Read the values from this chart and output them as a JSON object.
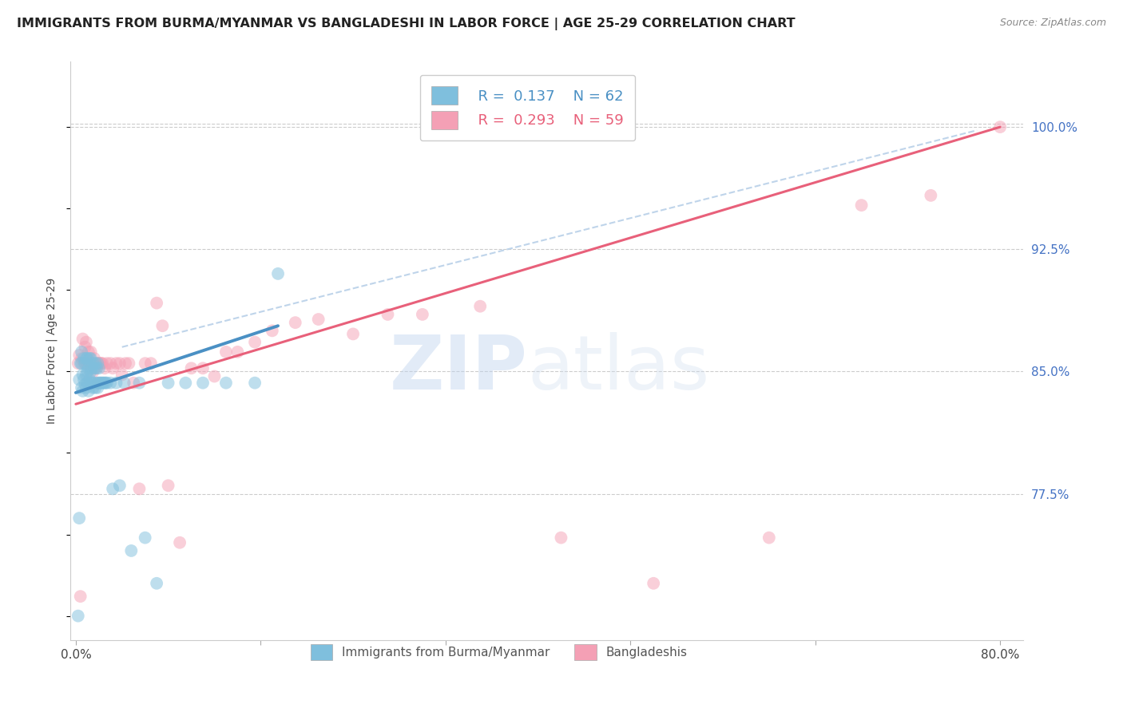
{
  "title": "IMMIGRANTS FROM BURMA/MYANMAR VS BANGLADESHI IN LABOR FORCE | AGE 25-29 CORRELATION CHART",
  "source": "Source: ZipAtlas.com",
  "ylabel": "In Labor Force | Age 25-29",
  "x_tick_positions": [
    0.0,
    0.16,
    0.32,
    0.48,
    0.64,
    0.8
  ],
  "x_tick_labels": [
    "0.0%",
    "",
    "",
    "",
    "",
    "80.0%"
  ],
  "y_ticks": [
    0.775,
    0.85,
    0.925,
    1.0
  ],
  "y_tick_labels_right": [
    "77.5%",
    "85.0%",
    "92.5%",
    "100.0%"
  ],
  "xlim": [
    -0.005,
    0.82
  ],
  "ylim": [
    0.685,
    1.04
  ],
  "blue_color": "#7fbfdd",
  "pink_color": "#f4a0b5",
  "blue_line_color": "#4a90c4",
  "pink_line_color": "#e8607a",
  "dash_color": "#b8d0e8",
  "title_fontsize": 11.5,
  "tick_fontsize": 11,
  "right_tick_color": "#4472c4",
  "watermark_zip": "ZIP",
  "watermark_atlas": "atlas",
  "blue_scatter_x": [
    0.002,
    0.003,
    0.003,
    0.004,
    0.005,
    0.005,
    0.005,
    0.006,
    0.006,
    0.007,
    0.007,
    0.008,
    0.008,
    0.009,
    0.009,
    0.009,
    0.01,
    0.01,
    0.01,
    0.011,
    0.011,
    0.012,
    0.012,
    0.013,
    0.013,
    0.013,
    0.014,
    0.014,
    0.015,
    0.015,
    0.016,
    0.016,
    0.017,
    0.017,
    0.018,
    0.018,
    0.019,
    0.019,
    0.02,
    0.02,
    0.021,
    0.022,
    0.023,
    0.024,
    0.025,
    0.026,
    0.027,
    0.03,
    0.032,
    0.035,
    0.038,
    0.042,
    0.048,
    0.055,
    0.06,
    0.07,
    0.08,
    0.095,
    0.11,
    0.13,
    0.155,
    0.175
  ],
  "blue_scatter_y": [
    0.7,
    0.76,
    0.845,
    0.855,
    0.84,
    0.855,
    0.862,
    0.838,
    0.848,
    0.845,
    0.858,
    0.842,
    0.855,
    0.84,
    0.848,
    0.858,
    0.843,
    0.85,
    0.858,
    0.838,
    0.852,
    0.845,
    0.858,
    0.843,
    0.85,
    0.858,
    0.843,
    0.852,
    0.84,
    0.855,
    0.843,
    0.852,
    0.84,
    0.855,
    0.843,
    0.852,
    0.84,
    0.855,
    0.843,
    0.852,
    0.843,
    0.843,
    0.843,
    0.843,
    0.843,
    0.843,
    0.843,
    0.843,
    0.778,
    0.843,
    0.78,
    0.843,
    0.74,
    0.843,
    0.748,
    0.72,
    0.843,
    0.843,
    0.843,
    0.843,
    0.843,
    0.91
  ],
  "pink_scatter_x": [
    0.002,
    0.003,
    0.004,
    0.005,
    0.006,
    0.007,
    0.008,
    0.009,
    0.009,
    0.01,
    0.011,
    0.012,
    0.013,
    0.014,
    0.015,
    0.016,
    0.017,
    0.018,
    0.019,
    0.02,
    0.021,
    0.022,
    0.023,
    0.025,
    0.027,
    0.03,
    0.032,
    0.035,
    0.038,
    0.04,
    0.043,
    0.046,
    0.05,
    0.055,
    0.06,
    0.065,
    0.07,
    0.075,
    0.08,
    0.09,
    0.1,
    0.11,
    0.12,
    0.13,
    0.14,
    0.155,
    0.17,
    0.19,
    0.21,
    0.24,
    0.27,
    0.3,
    0.35,
    0.42,
    0.5,
    0.6,
    0.68,
    0.74,
    0.8
  ],
  "pink_scatter_y": [
    0.855,
    0.86,
    0.712,
    0.858,
    0.87,
    0.855,
    0.865,
    0.855,
    0.868,
    0.855,
    0.862,
    0.855,
    0.862,
    0.855,
    0.85,
    0.858,
    0.852,
    0.855,
    0.843,
    0.855,
    0.855,
    0.855,
    0.855,
    0.852,
    0.855,
    0.855,
    0.852,
    0.855,
    0.855,
    0.848,
    0.855,
    0.855,
    0.843,
    0.778,
    0.855,
    0.855,
    0.892,
    0.878,
    0.78,
    0.745,
    0.852,
    0.852,
    0.847,
    0.862,
    0.862,
    0.868,
    0.875,
    0.88,
    0.882,
    0.873,
    0.885,
    0.885,
    0.89,
    0.748,
    0.72,
    0.748,
    0.952,
    0.958,
    1.0
  ],
  "blue_line_x": [
    0.0,
    0.175
  ],
  "blue_line_y": [
    0.837,
    0.878
  ],
  "pink_line_x": [
    0.0,
    0.8
  ],
  "pink_line_y": [
    0.83,
    1.0
  ],
  "dash_line_x": [
    0.04,
    0.78
  ],
  "dash_line_y": [
    0.865,
    0.998
  ]
}
